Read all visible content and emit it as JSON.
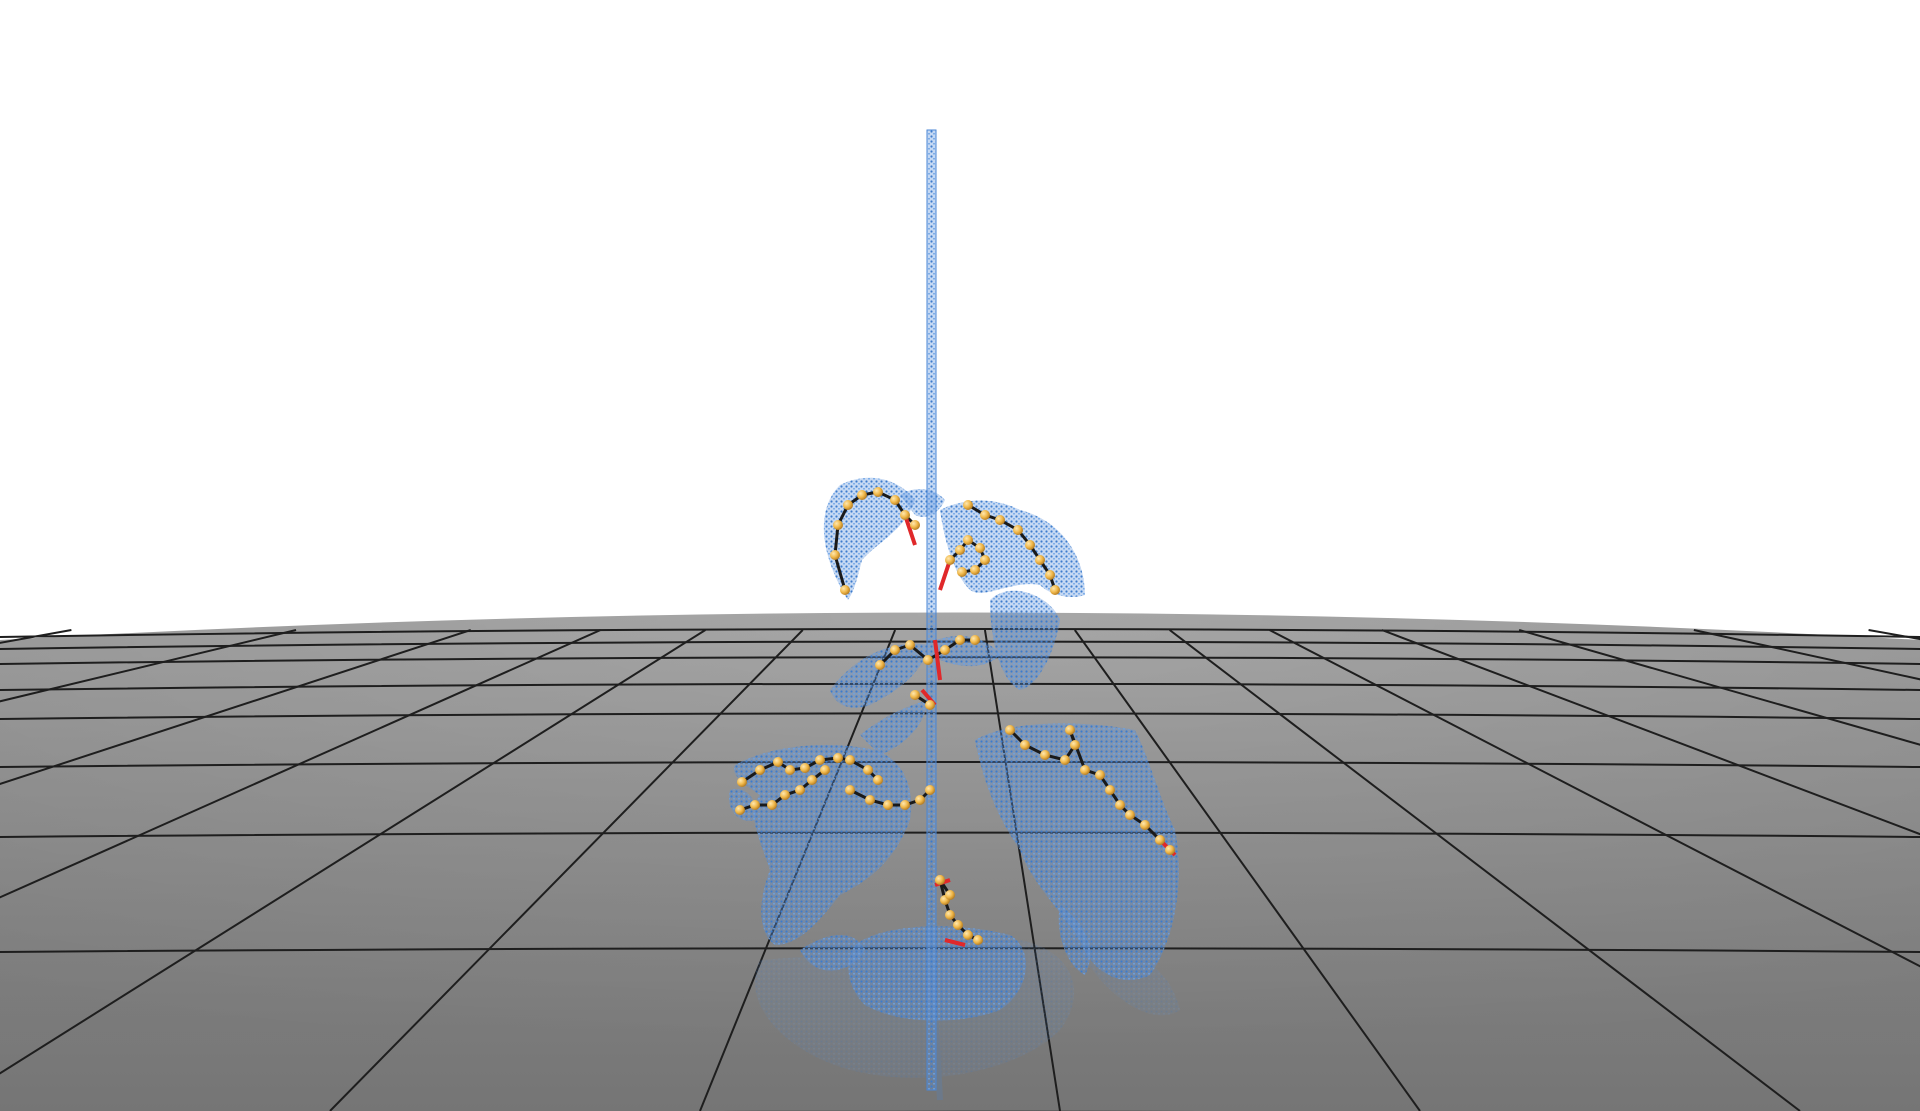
{
  "scene": {
    "background_color": "#ffffff",
    "floor": {
      "color_near": "#8a8a8a",
      "color_far": "#a0a0a0",
      "grid_color": "#1f1f1f",
      "reflection": true
    },
    "point_cloud": {
      "color": "#4a86d4",
      "subject": "plant",
      "includes_vertical_pole": true
    },
    "skeleton": {
      "node_color": "#f0b84a",
      "edge_color": "#1a1a1a",
      "highlight_edge_color": "#e0282a"
    }
  }
}
